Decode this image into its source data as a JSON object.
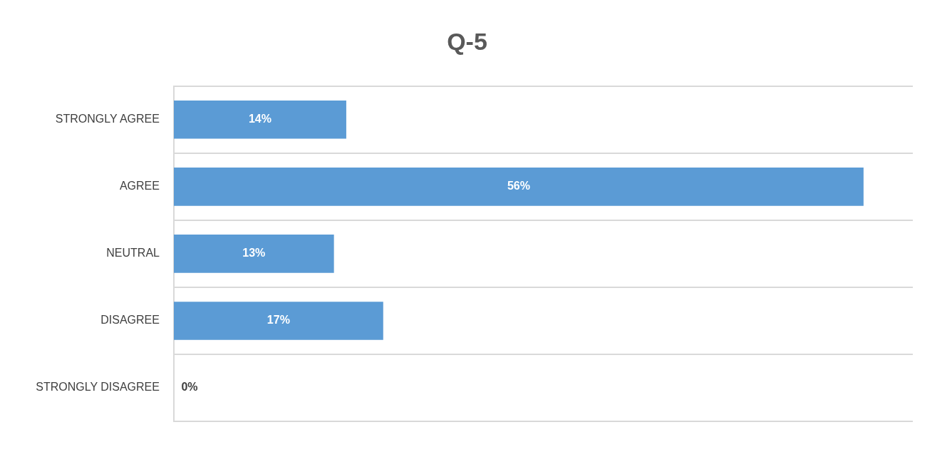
{
  "chart_data": {
    "type": "bar",
    "orientation": "horizontal",
    "title": "Q-5",
    "categories": [
      "STRONGLY AGREE",
      "AGREE",
      "NEUTRAL",
      "DISAGREE",
      "STRONGLY DISAGREE"
    ],
    "values": [
      14,
      56,
      13,
      17,
      0
    ],
    "color": "#5b9bd5",
    "value_labels": [
      "14%",
      "56%",
      "13%",
      "17%",
      "0%"
    ],
    "grid": "y",
    "legend": false
  }
}
